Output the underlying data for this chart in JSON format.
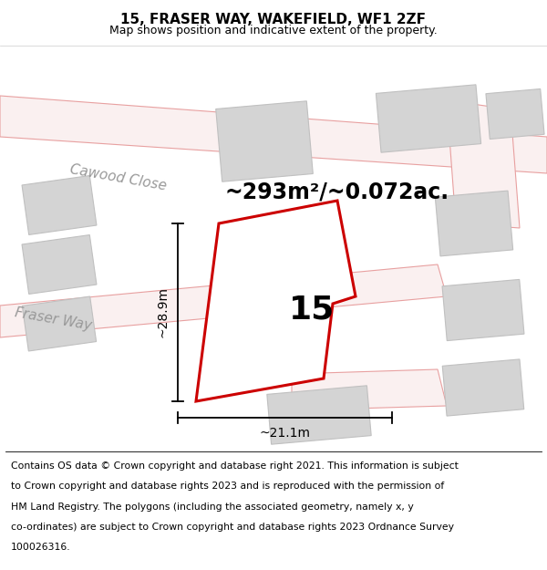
{
  "title": "15, FRASER WAY, WAKEFIELD, WF1 2ZF",
  "subtitle": "Map shows position and indicative extent of the property.",
  "area_label": "~293m²/~0.072ac.",
  "height_label": "~28.9m",
  "width_label": "~21.1m",
  "property_number": "15",
  "map_bg": "#f2f2f2",
  "property_fill": "#ffffff",
  "property_edge": "#cc0000",
  "road_fill": "#faf0f0",
  "road_edge": "#e8a0a0",
  "gray_fill": "#d4d4d4",
  "gray_edge": "#c0c0c0",
  "footer_lines": [
    "Contains OS data © Crown copyright and database right 2021. This information is subject",
    "to Crown copyright and database rights 2023 and is reproduced with the permission of",
    "HM Land Registry. The polygons (including the associated geometry, namely x, y",
    "co-ordinates) are subject to Crown copyright and database rights 2023 Ordnance Survey",
    "100026316."
  ],
  "title_fontsize": 11,
  "subtitle_fontsize": 9,
  "area_fontsize": 17,
  "number_fontsize": 26,
  "dim_fontsize": 10,
  "street_fontsize": 11,
  "footer_fontsize": 7.8
}
